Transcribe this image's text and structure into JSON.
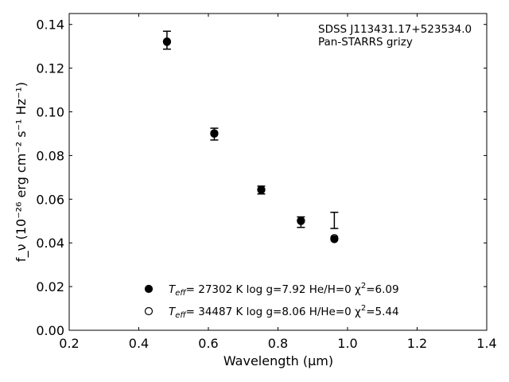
{
  "chart_data": {
    "type": "scatter",
    "title": "",
    "xlabel": "Wavelength (μm)",
    "ylabel": "f_ν (10⁻²⁶ erg cm⁻² s⁻¹ Hz⁻¹)",
    "xlim": [
      0.2,
      1.4
    ],
    "ylim": [
      0.0,
      0.145
    ],
    "xticks": [
      "0.2",
      "0.4",
      "0.6",
      "0.8",
      "1.0",
      "1.2",
      "1.4"
    ],
    "yticks": [
      "0.00",
      "0.02",
      "0.04",
      "0.06",
      "0.08",
      "0.10",
      "0.12",
      "0.14"
    ],
    "grid": false,
    "legend_position": "bottom-center",
    "annotation": {
      "line1": "SDSS J113431.17+523534.0",
      "line2": "Pan-STARRS grizy"
    },
    "observed": {
      "x": [
        0.481,
        0.617,
        0.752,
        0.866,
        0.962
      ],
      "y": [
        0.1328,
        0.0898,
        0.0642,
        0.0495,
        0.0503
      ],
      "yerr": [
        0.0041,
        0.0027,
        0.0018,
        0.0024,
        0.0037
      ]
    },
    "series": [
      {
        "label": {
          "prefix": "T",
          "sub": "eff",
          "rest": "= 27302 K  log g=7.92  He/H=0  χ",
          "sup": "2",
          "tail": "=6.09"
        },
        "marker": "filled",
        "x": [
          0.481,
          0.617,
          0.752,
          0.866,
          0.962
        ],
        "y": [
          0.1322,
          0.0902,
          0.0644,
          0.0502,
          0.0417
        ]
      },
      {
        "label": {
          "prefix": "T",
          "sub": "eff",
          "rest": "= 34487 K  log g=8.06  H/He=0  χ",
          "sup": "2",
          "tail": "=5.44"
        },
        "marker": "open",
        "x": [
          0.481,
          0.617,
          0.752,
          0.866,
          0.962
        ],
        "y": [
          0.132,
          0.09,
          0.0642,
          0.05,
          0.0422
        ]
      }
    ]
  }
}
